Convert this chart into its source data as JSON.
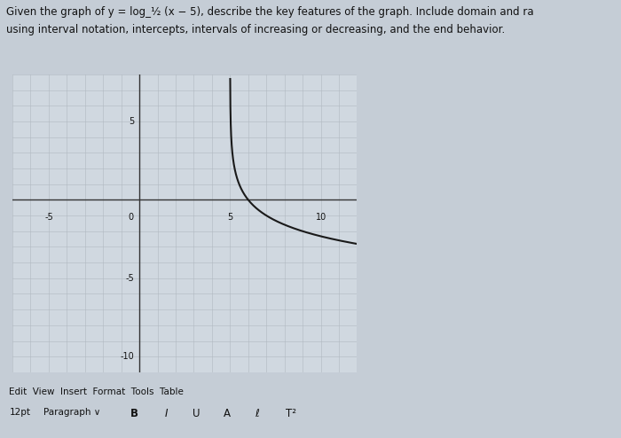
{
  "title_line1": "Given the graph of y = log_½ (x − 5), describe the key features of the graph. Include domain and ra",
  "title_line2": "using interval notation, intercepts, intervals of increasing or decreasing, and the end behavior.",
  "base": 0.5,
  "shift": 5,
  "x_min": -7,
  "x_max": 12,
  "y_min": -11,
  "y_max": 8,
  "asymptote": 5,
  "x_tick_labels": [
    -5,
    0,
    5,
    10
  ],
  "y_tick_labels": [
    5,
    -5,
    -10
  ],
  "background_color": "#c5cdd6",
  "plot_bg_color": "#d0d8e0",
  "grid_color": "#b0b8c0",
  "curve_color": "#1a1a1a",
  "axis_color": "#333333",
  "text_color": "#111111",
  "curve_linewidth": 1.5,
  "axis_linewidth": 1.0,
  "grid_linewidth": 0.4,
  "footer1": "Edit  View  Insert  Format  Tools  Table",
  "footer2_parts": [
    "12pt",
    "Paragraph",
    "B",
    "I",
    "U",
    "A",
    "ℓ",
    "T²"
  ]
}
